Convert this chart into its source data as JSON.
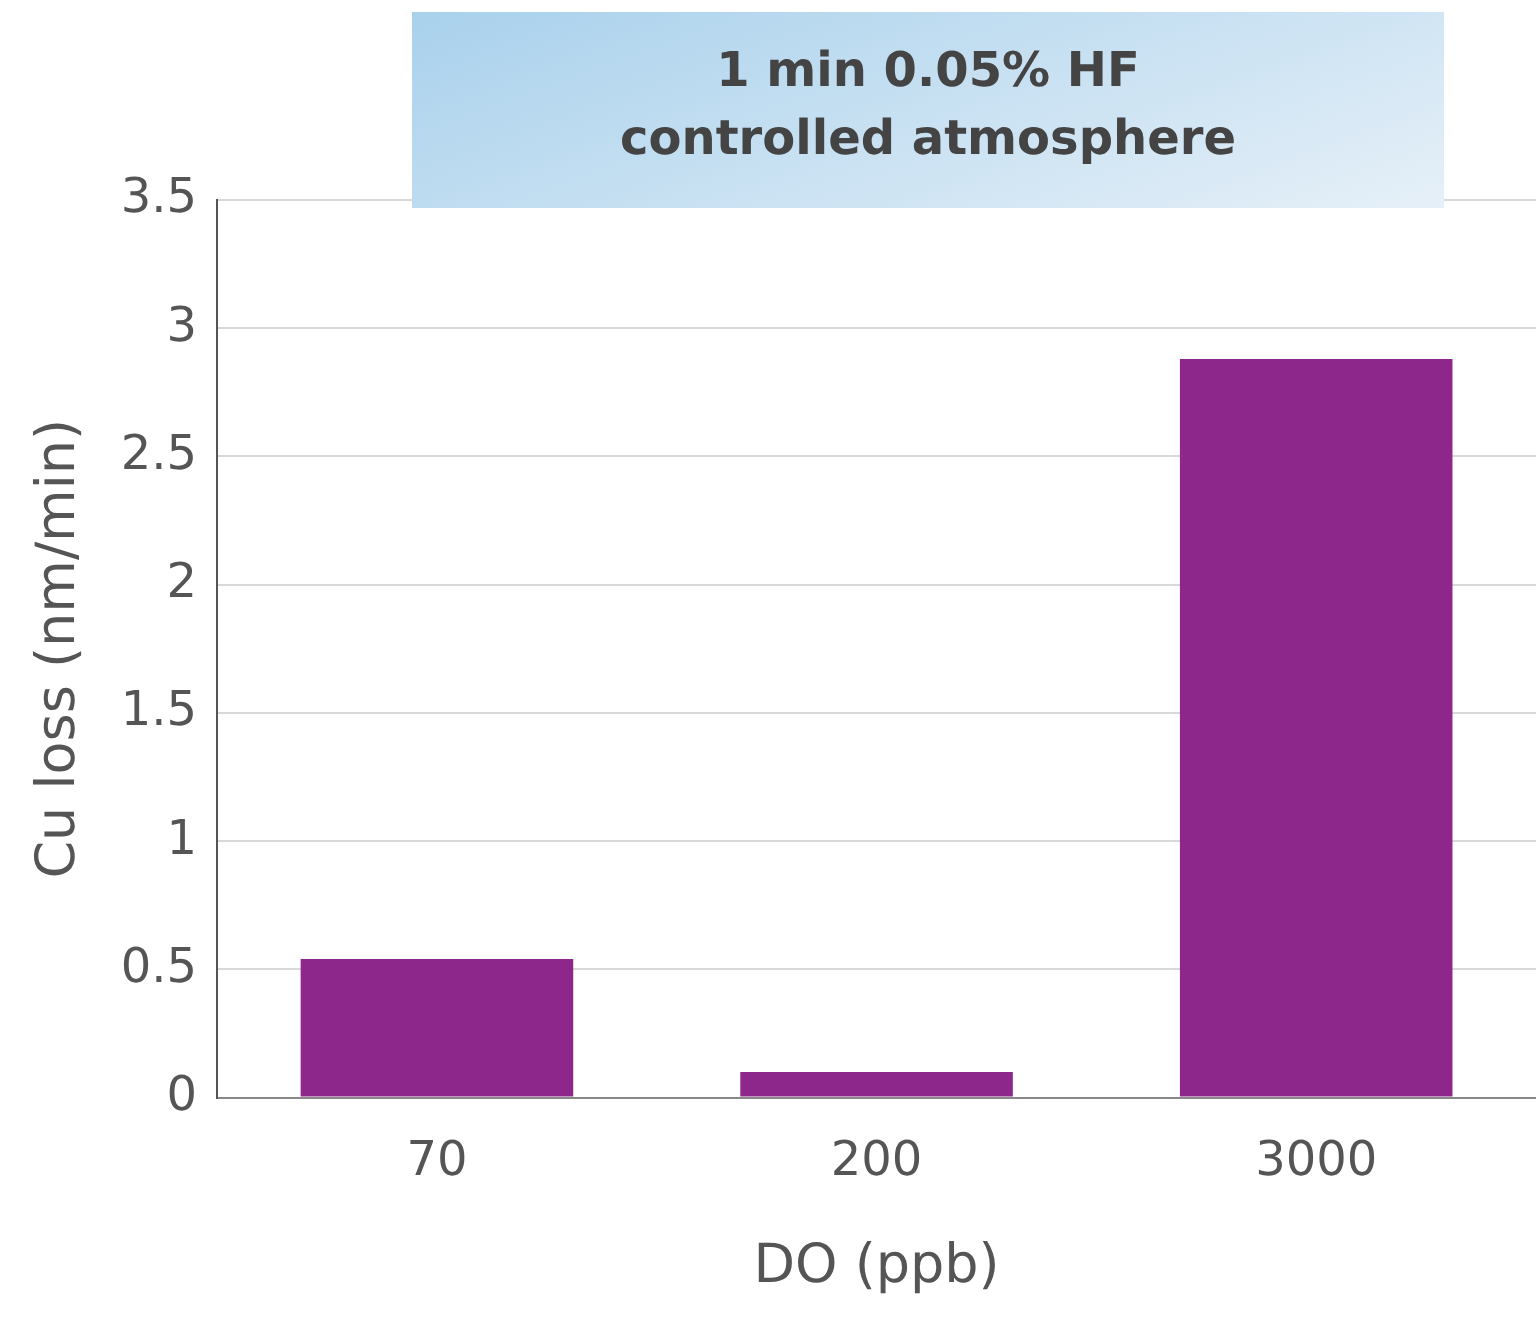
{
  "chart_data": {
    "type": "bar",
    "title": "1 min 0.05% HF\ncontrolled atmosphere",
    "xlabel": "DO (ppb)",
    "ylabel": "Cu loss (nm/min)",
    "categories": [
      "70",
      "200",
      "3000"
    ],
    "values": [
      0.54,
      0.1,
      2.88
    ],
    "color": "#8e278c",
    "ylim": [
      0,
      3.5
    ],
    "yticks": [
      0,
      0.5,
      1,
      1.5,
      2,
      2.5,
      3,
      3.5
    ],
    "grid": "y",
    "legend": false
  }
}
